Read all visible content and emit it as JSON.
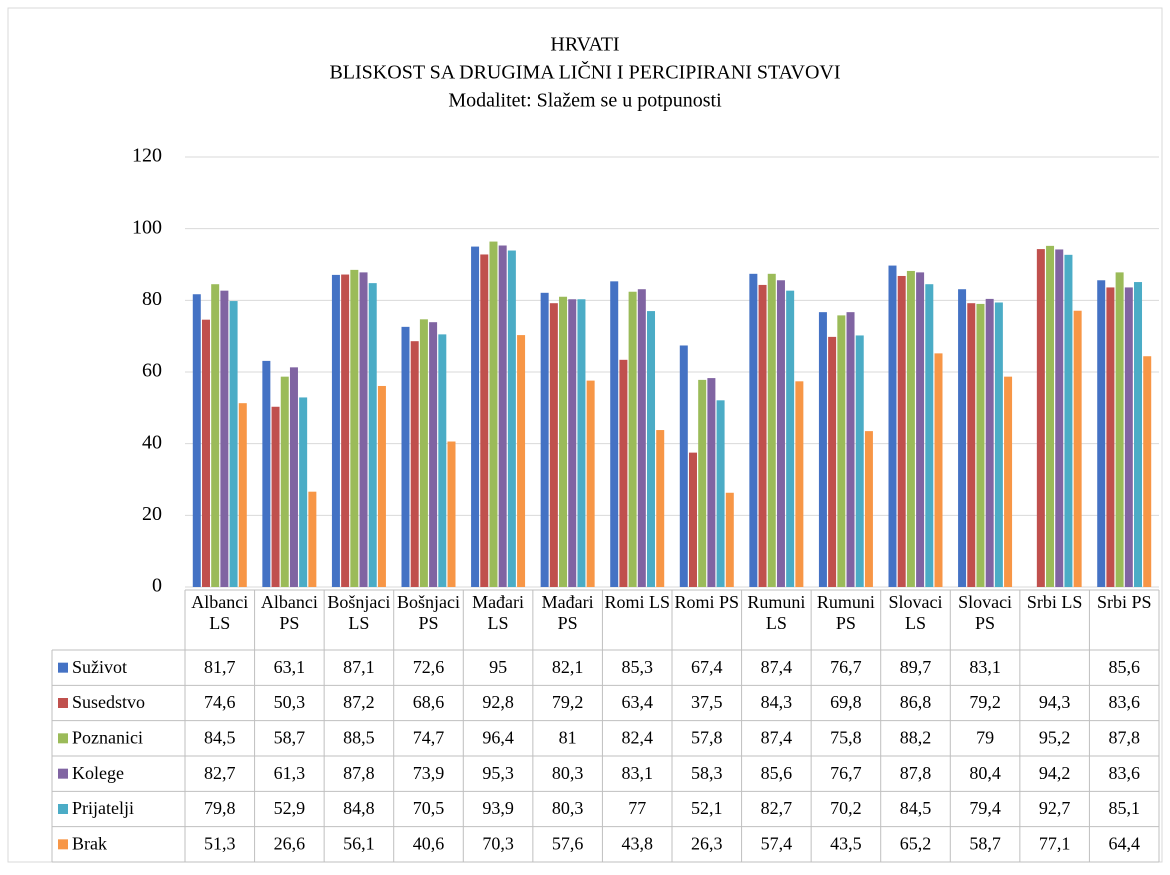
{
  "chart_data": {
    "type": "bar",
    "title": "HRVATI",
    "subtitle": "BLISKOST SA DRUGIMA LIČNI I PERCIPIRANI STAVOVI",
    "subtitle2": "Modalitet: Slažem se u potpunosti",
    "categories": [
      "Albanci LS",
      "Albanci PS",
      "Bošnjaci LS",
      "Bošnjaci PS",
      "Mađari LS",
      "Mađari PS",
      "Romi LS",
      "Romi PS",
      "Rumuni LS",
      "Rumuni PS",
      "Slovaci LS",
      "Slovaci PS",
      "Srbi LS",
      "Srbi PS"
    ],
    "ylim": [
      0,
      120
    ],
    "yticks": [
      0,
      20,
      40,
      60,
      80,
      100,
      120
    ],
    "grid": true,
    "series": [
      {
        "name": "Suživot",
        "color": "#4472c4",
        "values": [
          81.7,
          63.1,
          87.1,
          72.6,
          95,
          82.1,
          85.3,
          67.4,
          87.4,
          76.7,
          89.7,
          83.1,
          null,
          85.6
        ],
        "value_labels": [
          "81,7",
          "63,1",
          "87,1",
          "72,6",
          "95",
          "82,1",
          "85,3",
          "67,4",
          "87,4",
          "76,7",
          "89,7",
          "83,1",
          null,
          "85,6"
        ]
      },
      {
        "name": "Susedstvo",
        "color": "#c0504d",
        "values": [
          74.6,
          50.3,
          87.2,
          68.6,
          92.8,
          79.2,
          63.4,
          37.5,
          84.3,
          69.8,
          86.8,
          79.2,
          94.3,
          83.6
        ],
        "value_labels": [
          "74,6",
          "50,3",
          "87,2",
          "68,6",
          "92,8",
          "79,2",
          "63,4",
          "37,5",
          "84,3",
          "69,8",
          "86,8",
          "79,2",
          "94,3",
          "83,6"
        ]
      },
      {
        "name": "Poznanici",
        "color": "#9bbb59",
        "values": [
          84.5,
          58.7,
          88.5,
          74.7,
          96.4,
          81,
          82.4,
          57.8,
          87.4,
          75.8,
          88.2,
          79,
          95.2,
          87.8
        ],
        "value_labels": [
          "84,5",
          "58,7",
          "88,5",
          "74,7",
          "96,4",
          "81",
          "82,4",
          "57,8",
          "87,4",
          "75,8",
          "88,2",
          "79",
          "95,2",
          "87,8"
        ]
      },
      {
        "name": "Kolege",
        "color": "#8064a2",
        "values": [
          82.7,
          61.3,
          87.8,
          73.9,
          95.3,
          80.3,
          83.1,
          58.3,
          85.6,
          76.7,
          87.8,
          80.4,
          94.2,
          83.6
        ],
        "value_labels": [
          "82,7",
          "61,3",
          "87,8",
          "73,9",
          "95,3",
          "80,3",
          "83,1",
          "58,3",
          "85,6",
          "76,7",
          "87,8",
          "80,4",
          "94,2",
          "83,6"
        ]
      },
      {
        "name": "Prijatelji",
        "color": "#4bacc6",
        "values": [
          79.8,
          52.9,
          84.8,
          70.5,
          93.9,
          80.3,
          77,
          52.1,
          82.7,
          70.2,
          84.5,
          79.4,
          92.7,
          85.1
        ],
        "value_labels": [
          "79,8",
          "52,9",
          "84,8",
          "70,5",
          "93,9",
          "80,3",
          "77",
          "52,1",
          "82,7",
          "70,2",
          "84,5",
          "79,4",
          "92,7",
          "85,1"
        ]
      },
      {
        "name": "Brak",
        "color": "#f79646",
        "values": [
          51.3,
          26.6,
          56.1,
          40.6,
          70.3,
          57.6,
          43.8,
          26.3,
          57.4,
          43.5,
          65.2,
          58.7,
          77.1,
          64.4
        ],
        "value_labels": [
          "51,3",
          "26,6",
          "56,1",
          "40,6",
          "70,3",
          "57,6",
          "43,8",
          "26,3",
          "57,4",
          "43,5",
          "65,2",
          "58,7",
          "77,1",
          "64,4"
        ]
      }
    ]
  }
}
